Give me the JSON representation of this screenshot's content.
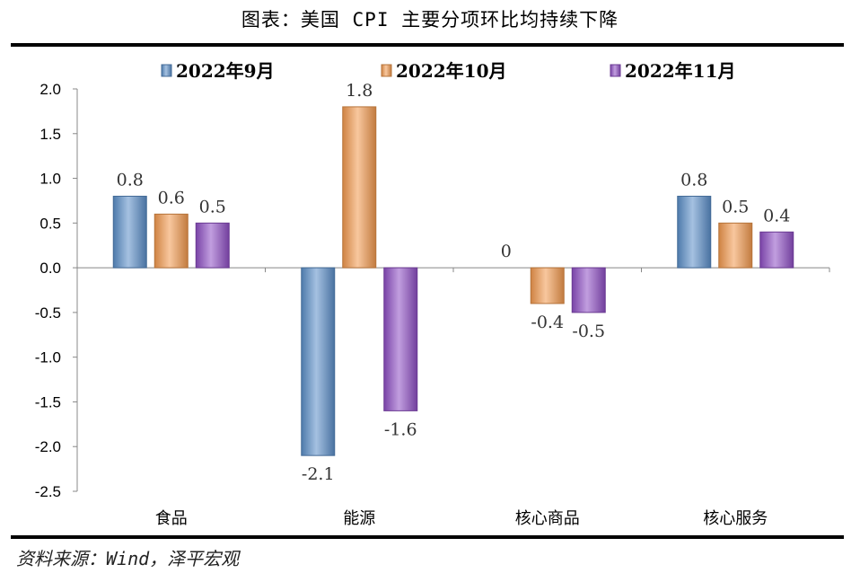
{
  "header": {
    "title": "图表：美国 CPI 主要分项环比均持续下降"
  },
  "footer": {
    "source": "资料来源：Wind，泽平宏观"
  },
  "chart_data": {
    "type": "bar",
    "categories": [
      "食品",
      "能源",
      "核心商品",
      "核心服务"
    ],
    "series": [
      {
        "name": "2022年9月",
        "values": [
          0.8,
          -2.1,
          0,
          0.8
        ],
        "labels": [
          "0.8",
          "-2.1",
          "0",
          "0.8"
        ],
        "color": "#5b8fc9"
      },
      {
        "name": "2022年10月",
        "values": [
          0.6,
          1.8,
          -0.4,
          0.5
        ],
        "labels": [
          "0.6",
          "1.8",
          "-0.4",
          "0.5"
        ],
        "color": "#f39a4f"
      },
      {
        "name": "2022年11月",
        "values": [
          0.5,
          -1.6,
          -0.5,
          0.4
        ],
        "labels": [
          "0.5",
          "-1.6",
          "-0.5",
          "0.4"
        ],
        "color": "#8e4fc4"
      }
    ],
    "ylim": [
      -2.5,
      2.0
    ],
    "yticks": [
      "2.0",
      "1.5",
      "1.0",
      "0.5",
      "0.0",
      "-0.5",
      "-1.0",
      "-1.5",
      "-2.0",
      "-2.5"
    ],
    "legend_position": "top-center",
    "grid": false,
    "xlabel": "",
    "ylabel": ""
  }
}
